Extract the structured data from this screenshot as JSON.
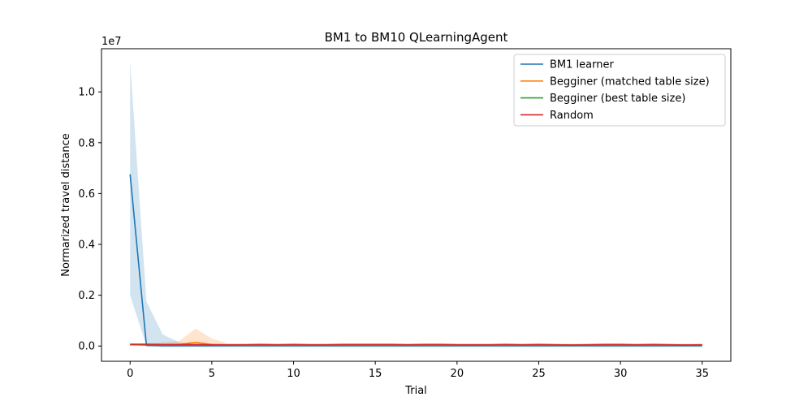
{
  "chart_data": {
    "type": "line",
    "title": "BM1 to BM10  QLearningAgent",
    "xlabel": "Trial",
    "ylabel": "Normarized travel distance",
    "y_offset_label": "1e7",
    "xlim": [
      -1.75,
      36.75
    ],
    "ylim": [
      -0.06,
      1.17
    ],
    "x_ticks": [
      0,
      5,
      10,
      15,
      20,
      25,
      30,
      35
    ],
    "x_tick_labels": [
      "0",
      "5",
      "10",
      "15",
      "20",
      "25",
      "30",
      "35"
    ],
    "y_ticks": [
      0.0,
      0.2,
      0.4,
      0.6,
      0.8,
      1.0
    ],
    "y_tick_labels": [
      "0.0",
      "0.2",
      "0.4",
      "0.6",
      "0.8",
      "1.0"
    ],
    "legend_position": "top-right",
    "grid": false,
    "x": [
      0,
      1,
      2,
      3,
      4,
      5,
      6,
      7,
      8,
      9,
      10,
      11,
      12,
      13,
      14,
      15,
      16,
      17,
      18,
      19,
      20,
      21,
      22,
      23,
      24,
      25,
      26,
      27,
      28,
      29,
      30,
      31,
      32,
      33,
      34,
      35
    ],
    "series": [
      {
        "name": "BM1 learner",
        "color": "#1f77b4",
        "values": [
          0.676,
          0.002,
          0.001,
          0.001,
          0.001,
          0.001,
          0.001,
          0.001,
          0.001,
          0.001,
          0.001,
          0.001,
          0.001,
          0.001,
          0.001,
          0.001,
          0.001,
          0.001,
          0.001,
          0.001,
          0.001,
          0.001,
          0.001,
          0.001,
          0.001,
          0.001,
          0.001,
          0.001,
          0.001,
          0.001,
          0.001,
          0.001,
          0.001,
          0.001,
          0.001,
          0.001
        ],
        "lower": [
          0.2,
          0.0,
          0.0,
          0.0,
          0.0,
          0.0,
          0.0,
          0.0,
          0.0,
          0.0,
          0.0,
          0.0,
          0.0,
          0.0,
          0.0,
          0.0,
          0.0,
          0.0,
          0.0,
          0.0,
          0.0,
          0.0,
          0.0,
          0.0,
          0.0,
          0.0,
          0.0,
          0.0,
          0.0,
          0.0,
          0.0,
          0.0,
          0.0,
          0.0,
          0.0,
          0.0
        ],
        "upper": [
          1.12,
          0.175,
          0.045,
          0.015,
          0.008,
          0.006,
          0.005,
          0.005,
          0.005,
          0.005,
          0.005,
          0.005,
          0.005,
          0.005,
          0.005,
          0.005,
          0.005,
          0.005,
          0.005,
          0.005,
          0.005,
          0.005,
          0.005,
          0.005,
          0.005,
          0.005,
          0.005,
          0.005,
          0.005,
          0.005,
          0.005,
          0.005,
          0.005,
          0.005,
          0.005,
          0.005
        ]
      },
      {
        "name": "Begginer (matched table size)",
        "color": "#ff7f0e",
        "values": [
          0.005,
          0.005,
          0.005,
          0.006,
          0.015,
          0.006,
          0.004,
          0.004,
          0.004,
          0.004,
          0.004,
          0.004,
          0.004,
          0.004,
          0.004,
          0.004,
          0.004,
          0.004,
          0.004,
          0.004,
          0.004,
          0.004,
          0.004,
          0.004,
          0.004,
          0.004,
          0.004,
          0.004,
          0.004,
          0.004,
          0.004,
          0.004,
          0.004,
          0.004,
          0.004,
          0.004
        ],
        "lower": [
          0.0,
          0.0,
          0.0,
          0.0,
          0.0,
          0.0,
          0.0,
          0.0,
          0.0,
          0.0,
          0.0,
          0.0,
          0.0,
          0.0,
          0.0,
          0.0,
          0.0,
          0.0,
          0.0,
          0.0,
          0.0,
          0.0,
          0.0,
          0.0,
          0.0,
          0.0,
          0.0,
          0.0,
          0.0,
          0.0,
          0.0,
          0.0,
          0.0,
          0.0,
          0.0,
          0.0
        ],
        "upper": [
          0.01,
          0.01,
          0.015,
          0.02,
          0.068,
          0.03,
          0.01,
          0.01,
          0.01,
          0.01,
          0.01,
          0.01,
          0.01,
          0.01,
          0.01,
          0.01,
          0.01,
          0.01,
          0.01,
          0.01,
          0.01,
          0.01,
          0.01,
          0.01,
          0.01,
          0.01,
          0.01,
          0.01,
          0.01,
          0.01,
          0.01,
          0.01,
          0.01,
          0.01,
          0.01,
          0.01
        ]
      },
      {
        "name": "Begginer (best table size)",
        "color": "#2ca02c",
        "values": [
          0.006,
          0.004,
          0.004,
          0.004,
          0.004,
          0.004,
          0.003,
          0.003,
          0.003,
          0.003,
          0.003,
          0.003,
          0.003,
          0.003,
          0.003,
          0.003,
          0.003,
          0.003,
          0.003,
          0.003,
          0.003,
          0.003,
          0.003,
          0.003,
          0.003,
          0.003,
          0.003,
          0.003,
          0.003,
          0.003,
          0.003,
          0.003,
          0.003,
          0.003,
          0.003,
          0.003
        ],
        "lower": [
          0.002,
          0.001,
          0.001,
          0.001,
          0.001,
          0.001,
          0.001,
          0.001,
          0.001,
          0.001,
          0.001,
          0.001,
          0.001,
          0.001,
          0.001,
          0.001,
          0.001,
          0.001,
          0.001,
          0.001,
          0.001,
          0.001,
          0.001,
          0.001,
          0.001,
          0.001,
          0.001,
          0.001,
          0.001,
          0.001,
          0.001,
          0.001,
          0.001,
          0.001,
          0.001,
          0.001
        ],
        "upper": [
          0.01,
          0.008,
          0.008,
          0.008,
          0.008,
          0.008,
          0.006,
          0.006,
          0.006,
          0.006,
          0.006,
          0.006,
          0.006,
          0.006,
          0.006,
          0.006,
          0.006,
          0.006,
          0.006,
          0.006,
          0.006,
          0.006,
          0.006,
          0.006,
          0.006,
          0.006,
          0.006,
          0.006,
          0.006,
          0.006,
          0.006,
          0.006,
          0.006,
          0.006,
          0.006,
          0.006
        ]
      },
      {
        "name": "Random",
        "color": "#d62728",
        "values": [
          0.007,
          0.007,
          0.006,
          0.006,
          0.006,
          0.005,
          0.005,
          0.005,
          0.006,
          0.005,
          0.006,
          0.005,
          0.005,
          0.006,
          0.006,
          0.006,
          0.006,
          0.005,
          0.006,
          0.006,
          0.005,
          0.005,
          0.005,
          0.006,
          0.005,
          0.006,
          0.005,
          0.004,
          0.005,
          0.006,
          0.006,
          0.005,
          0.006,
          0.005,
          0.004,
          0.005
        ],
        "lower": [
          0.004,
          0.004,
          0.004,
          0.004,
          0.004,
          0.003,
          0.003,
          0.003,
          0.004,
          0.003,
          0.004,
          0.003,
          0.003,
          0.004,
          0.004,
          0.004,
          0.004,
          0.003,
          0.004,
          0.004,
          0.003,
          0.003,
          0.003,
          0.004,
          0.003,
          0.004,
          0.003,
          0.003,
          0.003,
          0.004,
          0.004,
          0.003,
          0.004,
          0.003,
          0.003,
          0.003
        ],
        "upper": [
          0.01,
          0.01,
          0.009,
          0.009,
          0.009,
          0.008,
          0.008,
          0.008,
          0.009,
          0.008,
          0.009,
          0.008,
          0.008,
          0.009,
          0.009,
          0.009,
          0.009,
          0.008,
          0.009,
          0.009,
          0.008,
          0.008,
          0.008,
          0.009,
          0.008,
          0.009,
          0.008,
          0.006,
          0.008,
          0.009,
          0.009,
          0.008,
          0.009,
          0.008,
          0.006,
          0.008
        ]
      }
    ]
  }
}
